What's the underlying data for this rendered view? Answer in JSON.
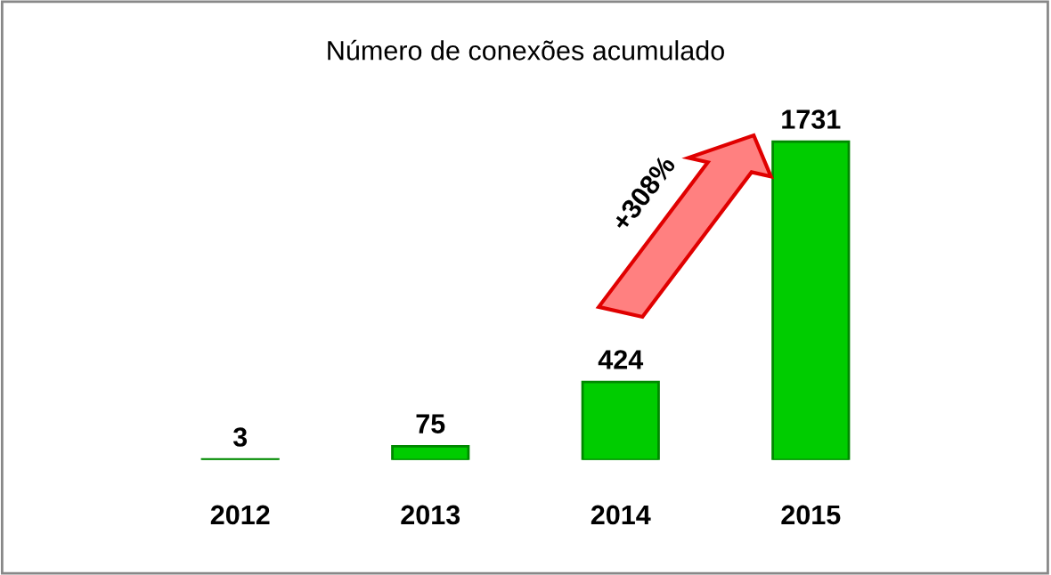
{
  "chart_data": {
    "type": "bar",
    "title": "Número de conexões acumulado",
    "categories": [
      "2012",
      "2013",
      "2014",
      "2015"
    ],
    "values": [
      3,
      75,
      424,
      1731
    ],
    "color": "#00cc00",
    "data_labels": true,
    "annotations": [
      "+308%"
    ]
  }
}
